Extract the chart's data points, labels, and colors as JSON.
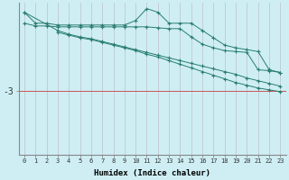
{
  "xlabel": "Humidex (Indice chaleur)",
  "bg_color": "#ceeef4",
  "line_color": "#2a7d70",
  "ref_line_color": "#cc5555",
  "ref_line_y": -3,
  "xlim": [
    -0.5,
    23.5
  ],
  "ylim": [
    -6.5,
    1.8
  ],
  "yticks": [
    -3
  ],
  "xticks": [
    0,
    1,
    2,
    3,
    4,
    5,
    6,
    7,
    8,
    9,
    10,
    11,
    12,
    13,
    14,
    15,
    16,
    17,
    18,
    19,
    20,
    21,
    22,
    23
  ],
  "line1_x": [
    0,
    1,
    2,
    3,
    4,
    5,
    6,
    7,
    8,
    9,
    10,
    11,
    12,
    13,
    14,
    15,
    16,
    17,
    18,
    19,
    20,
    21,
    22,
    23
  ],
  "line1_y": [
    1.3,
    0.7,
    0.7,
    0.6,
    0.6,
    0.6,
    0.6,
    0.6,
    0.6,
    0.6,
    0.85,
    1.5,
    1.3,
    0.7,
    0.7,
    0.7,
    0.3,
    -0.1,
    -0.5,
    -0.65,
    -0.75,
    -0.85,
    -1.85,
    -2.0
  ],
  "line2_x": [
    0,
    1,
    2,
    3,
    4,
    5,
    6,
    7,
    8,
    9,
    10,
    11,
    12,
    13,
    14,
    15,
    16,
    17,
    18,
    19,
    20,
    21,
    22,
    23
  ],
  "line2_y": [
    0.7,
    0.55,
    0.55,
    0.5,
    0.5,
    0.5,
    0.5,
    0.5,
    0.5,
    0.5,
    0.5,
    0.5,
    0.45,
    0.4,
    0.4,
    -0.05,
    -0.45,
    -0.65,
    -0.8,
    -0.85,
    -0.9,
    -1.85,
    -1.9,
    -2.0
  ],
  "line3_x": [
    0,
    3,
    4,
    5,
    6,
    7,
    8,
    9,
    10,
    11,
    12,
    13,
    14,
    15,
    16,
    17,
    18,
    19,
    20,
    21,
    22,
    23
  ],
  "line3_y": [
    1.3,
    0.3,
    0.1,
    -0.05,
    -0.15,
    -0.3,
    -0.45,
    -0.6,
    -0.75,
    -0.9,
    -1.05,
    -1.2,
    -1.35,
    -1.5,
    -1.65,
    -1.8,
    -1.95,
    -2.1,
    -2.3,
    -2.45,
    -2.6,
    -2.75
  ],
  "line4_x": [
    3,
    4,
    5,
    6,
    7,
    8,
    9,
    10,
    11,
    12,
    13,
    14,
    15,
    16,
    17,
    18,
    19,
    20,
    21,
    22,
    23
  ],
  "line4_y": [
    0.2,
    0.05,
    -0.1,
    -0.2,
    -0.35,
    -0.5,
    -0.65,
    -0.8,
    -1.0,
    -1.15,
    -1.35,
    -1.55,
    -1.75,
    -1.95,
    -2.15,
    -2.35,
    -2.55,
    -2.7,
    -2.85,
    -2.95,
    -3.05
  ],
  "vgrid_color": "#c0c0c8"
}
